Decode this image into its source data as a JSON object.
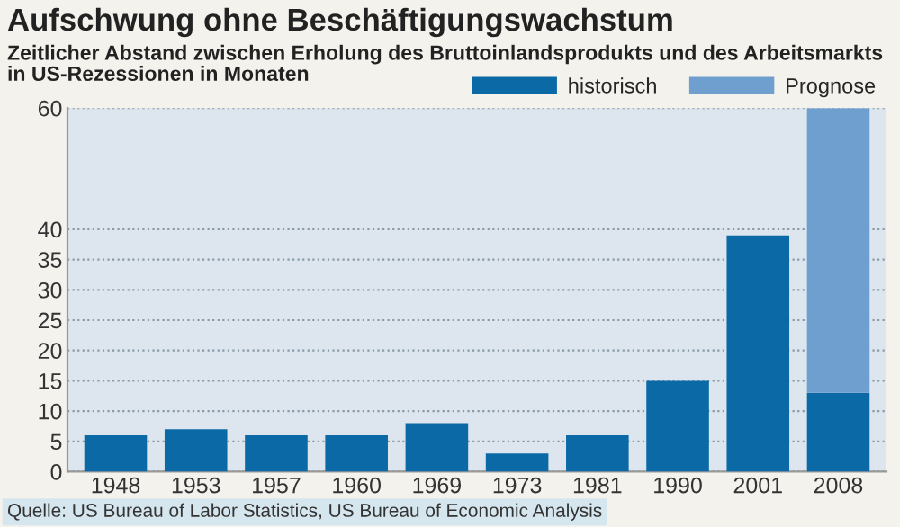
{
  "chart_data": {
    "type": "bar",
    "title": "Aufschwung ohne Beschäftigungswachstum",
    "subtitle": "Zeitlicher Abstand zwischen Erholung des Bruttoinlandsprodukts und des Arbeitsmarkts\nin US-Rezessionen in Monaten",
    "categories": [
      "1948",
      "1953",
      "1957",
      "1960",
      "1969",
      "1973",
      "1981",
      "1990",
      "2001",
      "2008"
    ],
    "stacked": true,
    "series": [
      {
        "name": "historisch",
        "color": "#0b6aa6",
        "values": [
          6,
          7,
          6,
          6,
          8,
          3,
          6,
          15,
          39,
          13
        ]
      },
      {
        "name": "Prognose",
        "color": "#6f9fcf",
        "values": [
          null,
          null,
          null,
          null,
          null,
          null,
          null,
          null,
          null,
          47
        ]
      }
    ],
    "ylim": [
      0,
      60
    ],
    "yticks": [
      0,
      5,
      10,
      15,
      20,
      25,
      30,
      35,
      40,
      60
    ],
    "grid": "y",
    "legend": "top right",
    "annotations": [
      "Quelle: US Bureau of Labor Statistics, US Bureau of Economic Analysis"
    ]
  }
}
